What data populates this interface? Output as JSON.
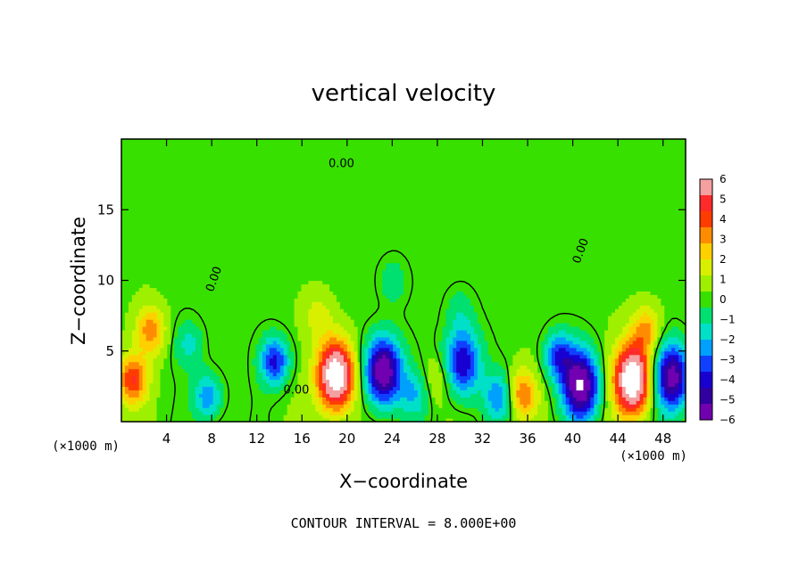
{
  "chart_data": {
    "type": "heatmap",
    "title": "vertical velocity",
    "xlabel": "X−coordinate",
    "ylabel": "Z−coordinate",
    "x_unit": "(×1000 m)",
    "z_unit": "(×1000 m)",
    "xlim": [
      0,
      50
    ],
    "zlim": [
      0,
      20
    ],
    "x_ticks": [
      4,
      8,
      12,
      16,
      20,
      24,
      28,
      32,
      36,
      40,
      44,
      48
    ],
    "z_ticks": [
      5,
      10,
      15
    ],
    "footer": "CONTOUR INTERVAL = 8.000E+00",
    "colorbar": {
      "labels": [
        "6",
        "5",
        "4",
        "3",
        "2",
        "1",
        "0",
        "−1",
        "−2",
        "−3",
        "−4",
        "−5",
        "−6"
      ],
      "range": [
        -6,
        6
      ],
      "colors": [
        "#f4a0a0",
        "#ff2a2a",
        "#ff3c00",
        "#ff8c00",
        "#ffd000",
        "#d8f000",
        "#9ef000",
        "#38e000",
        "#00e070",
        "#00e0c8",
        "#00a0ff",
        "#1040ff",
        "#1800d0",
        "#3000a0",
        "#7000b0"
      ]
    },
    "contour_labels": [
      {
        "text": "0.00",
        "x": 19.5,
        "z": 18.0
      },
      {
        "text": "0.00",
        "x": 8.5,
        "z": 10.0
      },
      {
        "text": "0.00",
        "x": 41.0,
        "z": 12.0
      },
      {
        "text": "0.00",
        "x": 15.5,
        "z": 2.0
      }
    ],
    "features": [
      {
        "x": 19.0,
        "z": 3.3,
        "w": 6
      },
      {
        "x": 45.3,
        "z": 3.0,
        "w": 6
      },
      {
        "x": 1.0,
        "z": 3.0,
        "w": 3
      },
      {
        "x": 2.6,
        "z": 6.5,
        "w": 2.2
      },
      {
        "x": 35.5,
        "z": 2.0,
        "w": 2.5
      },
      {
        "x": 46.5,
        "z": 6.5,
        "w": 2
      },
      {
        "x": 17.5,
        "z": 7.5,
        "w": 1
      },
      {
        "x": 28.0,
        "z": 3.0,
        "w": 1
      },
      {
        "x": 13.6,
        "z": 4.3,
        "w": -3
      },
      {
        "x": 23.2,
        "z": 3.6,
        "w": -5
      },
      {
        "x": 40.7,
        "z": 2.6,
        "w": -5
      },
      {
        "x": 48.8,
        "z": 3.2,
        "w": -4.5
      },
      {
        "x": 30.2,
        "z": 4.2,
        "w": -3.5
      },
      {
        "x": 7.7,
        "z": 1.8,
        "w": -2.2
      },
      {
        "x": 33.5,
        "z": 1.8,
        "w": -2.2
      },
      {
        "x": 38.7,
        "z": 4.7,
        "w": -2.6
      },
      {
        "x": 26.0,
        "z": 2.0,
        "w": -1.5
      },
      {
        "x": 6.0,
        "z": 5.5,
        "w": -1.2
      },
      {
        "x": 24.0,
        "z": 10.0,
        "w": -0.9
      },
      {
        "x": 30.0,
        "z": 8.0,
        "w": -0.8
      }
    ]
  }
}
